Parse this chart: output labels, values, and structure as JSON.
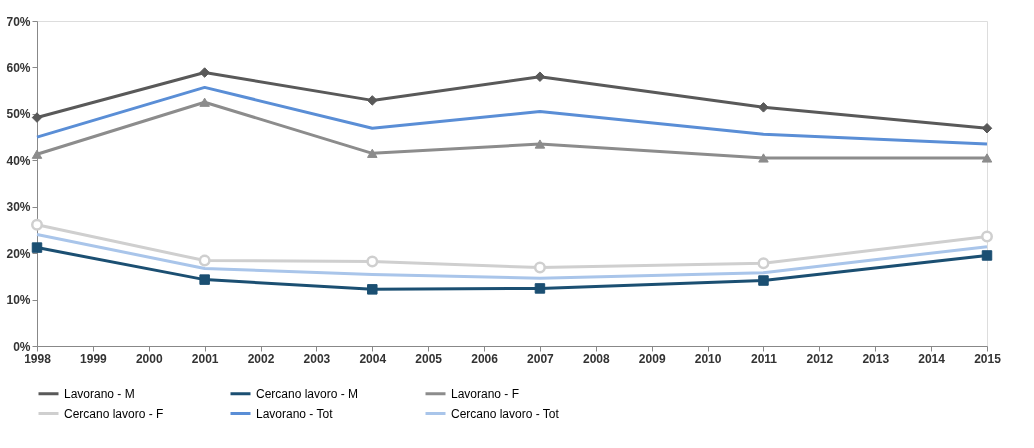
{
  "chart_data": {
    "type": "line",
    "x": [
      1998,
      2001,
      2004,
      2007,
      2011,
      2015
    ],
    "xlim": [
      1998,
      2015
    ],
    "xticks": [
      1998,
      1999,
      2000,
      2001,
      2002,
      2003,
      2004,
      2005,
      2006,
      2007,
      2008,
      2009,
      2010,
      2011,
      2012,
      2013,
      2014,
      2015
    ],
    "ylim": [
      0,
      70
    ],
    "yticks": [
      {
        "value": 0,
        "label": "0%"
      },
      {
        "value": 10,
        "label": "10%"
      },
      {
        "value": 20,
        "label": "20%"
      },
      {
        "value": 30,
        "label": "30%"
      },
      {
        "value": 40,
        "label": "40%"
      },
      {
        "value": 50,
        "label": "50%"
      },
      {
        "value": 60,
        "label": "60%"
      },
      {
        "value": 70,
        "label": "70%"
      }
    ],
    "grid": false,
    "legend": "bottom",
    "series": [
      {
        "name": "Lavorano - M",
        "color": "#595959",
        "marker": "diamond",
        "values": [
          49.2,
          58.9,
          52.9,
          58,
          51.4,
          46.9
        ]
      },
      {
        "name": "Cercano lavoro - M",
        "color": "#1b4f72",
        "marker": "square",
        "values": [
          21.2,
          14.3,
          12.2,
          12.4,
          14.1,
          19.5
        ]
      },
      {
        "name": "Lavorano - F",
        "color": "#8c8c8c",
        "marker": "triangle",
        "values": [
          41.3,
          52.5,
          41.5,
          43.5,
          40.5,
          40.5
        ]
      },
      {
        "name": "Cercano lavoro - F",
        "color": "#cfcfcf",
        "marker": "circle",
        "values": [
          26.1,
          18.4,
          18.2,
          16.9,
          17.8,
          23.6
        ]
      },
      {
        "name": "Lavorano - Tot",
        "color": "#5a8ed6",
        "marker": "none",
        "values": [
          45,
          55.7,
          46.9,
          50.5,
          45.6,
          43.5
        ]
      },
      {
        "name": "Cercano lavoro - Tot",
        "color": "#a9c5ea",
        "marker": "none",
        "values": [
          24,
          16.7,
          15.4,
          14.6,
          15.8,
          21.4
        ]
      }
    ]
  }
}
